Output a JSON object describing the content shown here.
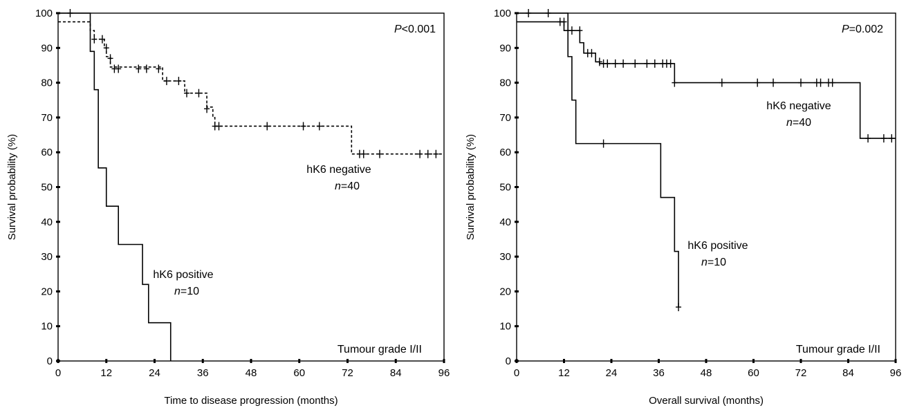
{
  "chart_data": [
    {
      "type": "line",
      "xlabel": "Time to disease progression (months)",
      "ylabel": "Survival probability (%)",
      "xlim": [
        0,
        96
      ],
      "ylim": [
        0,
        100
      ],
      "xticks": [
        0,
        12,
        24,
        36,
        48,
        60,
        72,
        84,
        96
      ],
      "yticks": [
        0,
        10,
        20,
        30,
        40,
        50,
        60,
        70,
        80,
        90,
        100
      ],
      "grid": false,
      "annotations": {
        "pvalue_prefix": "P",
        "pvalue_rest": "<0.001",
        "grade": "Tumour grade I/II"
      },
      "series": [
        {
          "label_name": "hK6 negative",
          "label_n_prefix": "n",
          "label_n_rest": "=40",
          "style": "dashed",
          "steps": [
            [
              0,
              97.5
            ],
            [
              8,
              97.5
            ],
            [
              8,
              95
            ],
            [
              9,
              95
            ],
            [
              9,
              92.5
            ],
            [
              11.5,
              92.5
            ],
            [
              11.5,
              90
            ],
            [
              12,
              90
            ],
            [
              12,
              87.5
            ],
            [
              13,
              87.5
            ],
            [
              13,
              84.5
            ],
            [
              26,
              84.5
            ],
            [
              26,
              80.5
            ],
            [
              31.5,
              80.5
            ],
            [
              31.5,
              77
            ],
            [
              37,
              77
            ],
            [
              37,
              73
            ],
            [
              38.5,
              73
            ],
            [
              38.5,
              70
            ],
            [
              39,
              70
            ],
            [
              39,
              67.5
            ],
            [
              73,
              67.5
            ],
            [
              73,
              59.5
            ],
            [
              96,
              59.5
            ]
          ],
          "censored": [
            [
              3,
              100
            ],
            [
              9,
              92.5
            ],
            [
              11,
              92.5
            ],
            [
              12,
              90
            ],
            [
              13,
              87
            ],
            [
              14,
              84
            ],
            [
              15,
              84
            ],
            [
              20,
              84
            ],
            [
              22,
              84
            ],
            [
              25,
              84
            ],
            [
              27,
              80.5
            ],
            [
              30,
              80.5
            ],
            [
              32,
              77
            ],
            [
              35,
              77
            ],
            [
              37,
              72.5
            ],
            [
              39,
              67.5
            ],
            [
              40,
              67.5
            ],
            [
              52,
              67.5
            ],
            [
              61,
              67.5
            ],
            [
              65,
              67.5
            ],
            [
              75,
              59.5
            ],
            [
              76,
              59.5
            ],
            [
              80,
              59.5
            ],
            [
              90,
              59.5
            ],
            [
              92,
              59.5
            ],
            [
              94,
              59.5
            ]
          ]
        },
        {
          "label_name": "hK6 positive",
          "label_n_prefix": "n",
          "label_n_rest": "=10",
          "style": "solid",
          "steps": [
            [
              0,
              100
            ],
            [
              8,
              100
            ],
            [
              8,
              89
            ],
            [
              9,
              89
            ],
            [
              9,
              78
            ],
            [
              10,
              78
            ],
            [
              10,
              55.5
            ],
            [
              12,
              55.5
            ],
            [
              12,
              44.5
            ],
            [
              15,
              44.5
            ],
            [
              15,
              33.5
            ],
            [
              21,
              33.5
            ],
            [
              21,
              22
            ],
            [
              22.5,
              22
            ],
            [
              22.5,
              11
            ],
            [
              28,
              11
            ],
            [
              28,
              0
            ]
          ],
          "censored": []
        }
      ]
    },
    {
      "type": "line",
      "xlabel": "Overall survival (months)",
      "ylabel": "Survival probability (%)",
      "xlim": [
        0,
        96
      ],
      "ylim": [
        0,
        100
      ],
      "xticks": [
        0,
        12,
        24,
        36,
        48,
        60,
        72,
        84,
        96
      ],
      "yticks": [
        0,
        10,
        20,
        30,
        40,
        50,
        60,
        70,
        80,
        90,
        100
      ],
      "grid": false,
      "annotations": {
        "pvalue_prefix": "P",
        "pvalue_rest": "=0.002",
        "grade": "Tumour grade I/II"
      },
      "series": [
        {
          "label_name": "hK6 negative",
          "label_n_prefix": "n",
          "label_n_rest": "=40",
          "style": "solid",
          "steps": [
            [
              0,
              97.5
            ],
            [
              12,
              97.5
            ],
            [
              12,
              95
            ],
            [
              16,
              95
            ],
            [
              16,
              91.5
            ],
            [
              17,
              91.5
            ],
            [
              17,
              88.5
            ],
            [
              20,
              88.5
            ],
            [
              20,
              86
            ],
            [
              21,
              86
            ],
            [
              21,
              85.5
            ],
            [
              40,
              85.5
            ],
            [
              40,
              80
            ],
            [
              87,
              80
            ],
            [
              87,
              64
            ],
            [
              96,
              64
            ]
          ],
          "censored": [
            [
              3,
              100
            ],
            [
              8,
              100
            ],
            [
              11,
              97.5
            ],
            [
              12,
              97.5
            ],
            [
              13,
              95
            ],
            [
              14,
              95
            ],
            [
              16,
              95
            ],
            [
              18,
              88.5
            ],
            [
              19,
              88.5
            ],
            [
              21,
              86
            ],
            [
              22,
              85.5
            ],
            [
              23,
              85.5
            ],
            [
              25,
              85.5
            ],
            [
              27,
              85.5
            ],
            [
              30,
              85.5
            ],
            [
              33,
              85.5
            ],
            [
              35,
              85.5
            ],
            [
              37,
              85.5
            ],
            [
              38,
              85.5
            ],
            [
              39,
              85.5
            ],
            [
              40,
              80
            ],
            [
              52,
              80
            ],
            [
              61,
              80
            ],
            [
              65,
              80
            ],
            [
              72,
              80
            ],
            [
              76,
              80
            ],
            [
              77,
              80
            ],
            [
              79,
              80
            ],
            [
              80,
              80
            ],
            [
              89,
              64
            ],
            [
              93,
              64
            ],
            [
              95,
              64
            ]
          ]
        },
        {
          "label_name": "hK6 positive",
          "label_n_prefix": "n",
          "label_n_rest": "=10",
          "style": "solid",
          "steps": [
            [
              0,
              100
            ],
            [
              13,
              100
            ],
            [
              13,
              87.5
            ],
            [
              14,
              87.5
            ],
            [
              14,
              75
            ],
            [
              15,
              75
            ],
            [
              15,
              62.5
            ],
            [
              36.5,
              62.5
            ],
            [
              36.5,
              47
            ],
            [
              40,
              47
            ],
            [
              40,
              31.5
            ],
            [
              41,
              31.5
            ],
            [
              41,
              15.5
            ]
          ],
          "censored": [
            [
              22,
              62.5
            ],
            [
              41,
              15.5
            ]
          ]
        }
      ]
    }
  ]
}
